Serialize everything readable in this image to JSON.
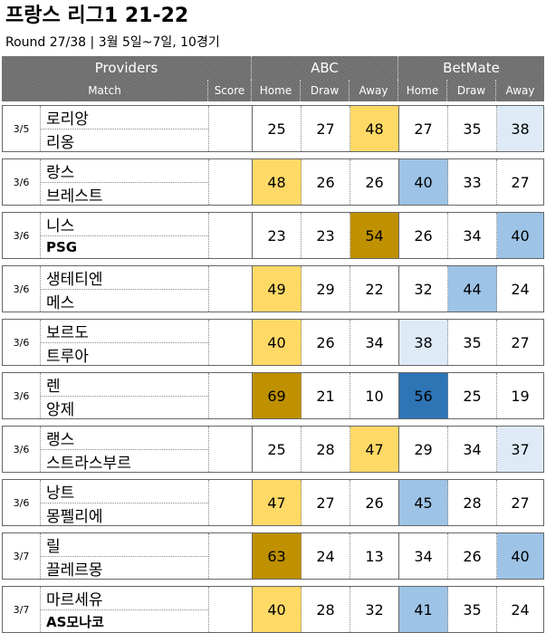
{
  "title": "프랑스 리그1 21-22",
  "subtitle": "Round 27/38  | 3월 5일~7일, 10경기",
  "header": {
    "providers_label": "Providers",
    "provider_a": "ABC",
    "provider_b": "BetMate",
    "match_label": "Match",
    "score_label": "Score",
    "home_label": "Home",
    "draw_label": "Draw",
    "away_label": "Away"
  },
  "colors": {
    "light_gold": "#ffd966",
    "dark_gold": "#bf9000",
    "light_blue": "#9dc3e6",
    "pale_blue": "#deebf7",
    "dark_blue": "#2e75b6"
  },
  "matches": [
    {
      "date": "3/5",
      "home": "로리앙",
      "away": "리옹",
      "home_bold": false,
      "away_bold": false,
      "abc": {
        "home": "25",
        "draw": "27",
        "away": "48"
      },
      "betmate": {
        "home": "27",
        "draw": "35",
        "away": "38"
      },
      "hl": [
        "",
        "",
        "light_gold",
        "",
        "",
        "pale_blue"
      ]
    },
    {
      "date": "3/6",
      "home": "랑스",
      "away": "브레스트",
      "home_bold": false,
      "away_bold": false,
      "abc": {
        "home": "48",
        "draw": "26",
        "away": "26"
      },
      "betmate": {
        "home": "40",
        "draw": "33",
        "away": "27"
      },
      "hl": [
        "light_gold",
        "",
        "",
        "light_blue",
        "",
        ""
      ]
    },
    {
      "date": "3/6",
      "home": "니스",
      "away": "PSG",
      "home_bold": false,
      "away_bold": true,
      "abc": {
        "home": "23",
        "draw": "23",
        "away": "54"
      },
      "betmate": {
        "home": "26",
        "draw": "34",
        "away": "40"
      },
      "hl": [
        "",
        "",
        "dark_gold",
        "",
        "",
        "light_blue"
      ]
    },
    {
      "date": "3/6",
      "home": "생테티엔",
      "away": "메스",
      "home_bold": false,
      "away_bold": false,
      "abc": {
        "home": "49",
        "draw": "29",
        "away": "22"
      },
      "betmate": {
        "home": "32",
        "draw": "44",
        "away": "24"
      },
      "hl": [
        "light_gold",
        "",
        "",
        "",
        "light_blue",
        ""
      ]
    },
    {
      "date": "3/6",
      "home": "보르도",
      "away": "트루아",
      "home_bold": false,
      "away_bold": false,
      "abc": {
        "home": "40",
        "draw": "26",
        "away": "34"
      },
      "betmate": {
        "home": "38",
        "draw": "35",
        "away": "27"
      },
      "hl": [
        "light_gold",
        "",
        "",
        "pale_blue",
        "",
        ""
      ]
    },
    {
      "date": "3/6",
      "home": "렌",
      "away": "앙제",
      "home_bold": false,
      "away_bold": false,
      "abc": {
        "home": "69",
        "draw": "21",
        "away": "10"
      },
      "betmate": {
        "home": "56",
        "draw": "25",
        "away": "19"
      },
      "hl": [
        "dark_gold",
        "",
        "",
        "dark_blue",
        "",
        ""
      ]
    },
    {
      "date": "3/6",
      "home": "랭스",
      "away": "스트라스부르",
      "home_bold": false,
      "away_bold": false,
      "abc": {
        "home": "25",
        "draw": "28",
        "away": "47"
      },
      "betmate": {
        "home": "29",
        "draw": "34",
        "away": "37"
      },
      "hl": [
        "",
        "",
        "light_gold",
        "",
        "",
        "pale_blue"
      ]
    },
    {
      "date": "3/6",
      "home": "낭트",
      "away": "몽펠리에",
      "home_bold": false,
      "away_bold": false,
      "abc": {
        "home": "47",
        "draw": "27",
        "away": "26"
      },
      "betmate": {
        "home": "45",
        "draw": "28",
        "away": "27"
      },
      "hl": [
        "light_gold",
        "",
        "",
        "light_blue",
        "",
        ""
      ]
    },
    {
      "date": "3/7",
      "home": "릴",
      "away": "끌레르몽",
      "home_bold": false,
      "away_bold": false,
      "abc": {
        "home": "63",
        "draw": "24",
        "away": "13"
      },
      "betmate": {
        "home": "34",
        "draw": "26",
        "away": "40"
      },
      "hl": [
        "dark_gold",
        "",
        "",
        "",
        "",
        "light_blue"
      ]
    },
    {
      "date": "3/7",
      "home": "마르세유",
      "away": "AS모나코",
      "home_bold": false,
      "away_bold": true,
      "abc": {
        "home": "40",
        "draw": "28",
        "away": "32"
      },
      "betmate": {
        "home": "41",
        "draw": "35",
        "away": "24"
      },
      "hl": [
        "light_gold",
        "",
        "",
        "light_blue",
        "",
        ""
      ]
    }
  ]
}
